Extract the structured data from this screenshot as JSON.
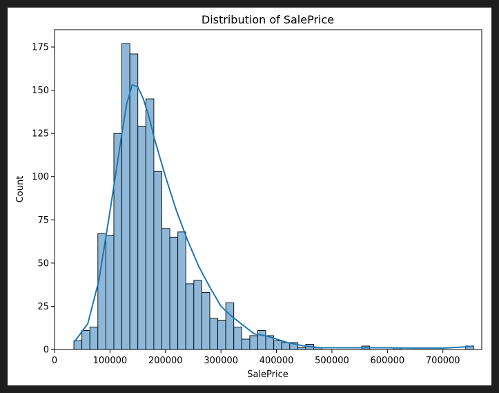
{
  "chart_data": {
    "type": "bar",
    "title": "Distribution of SalePrice",
    "xlabel": "SalePrice",
    "ylabel": "Count",
    "xlim": [
      0,
      770000
    ],
    "ylim": [
      0,
      185
    ],
    "xticks": [
      0,
      100000,
      200000,
      300000,
      400000,
      500000,
      600000,
      700000
    ],
    "yticks": [
      0,
      25,
      50,
      75,
      100,
      125,
      150,
      175
    ],
    "grid": false,
    "legend": "none",
    "bins": {
      "start": 34900,
      "width": 14410,
      "counts": [
        5,
        11,
        13,
        67,
        66,
        125,
        177,
        171,
        129,
        145,
        103,
        70,
        65,
        68,
        38,
        40,
        33,
        18,
        17,
        27,
        13,
        6,
        8,
        11,
        8,
        5,
        4,
        4,
        1,
        3,
        1,
        0,
        0,
        0,
        0,
        0,
        2,
        0,
        0,
        0,
        1,
        0,
        0,
        0,
        0,
        0,
        0,
        0,
        0,
        2
      ]
    },
    "kde": {
      "x": [
        34900,
        60000,
        80000,
        100000,
        120000,
        130000,
        140000,
        150000,
        160000,
        170000,
        180000,
        200000,
        220000,
        240000,
        260000,
        280000,
        300000,
        320000,
        340000,
        360000,
        380000,
        400000,
        420000,
        450000,
        480000,
        500000,
        550000,
        600000,
        650000,
        700000,
        740000,
        755000
      ],
      "y": [
        4,
        15,
        40,
        80,
        122,
        142,
        153,
        152,
        145,
        135,
        122,
        100,
        80,
        63,
        48,
        36,
        25,
        19,
        14,
        9,
        8,
        6,
        4,
        2,
        1,
        1,
        1,
        1,
        0.8,
        0.8,
        1.5,
        2
      ]
    },
    "colors": {
      "bar_fill": "#8db8d9",
      "bar_edge": "#000000",
      "kde_line": "#1f77b4"
    }
  }
}
